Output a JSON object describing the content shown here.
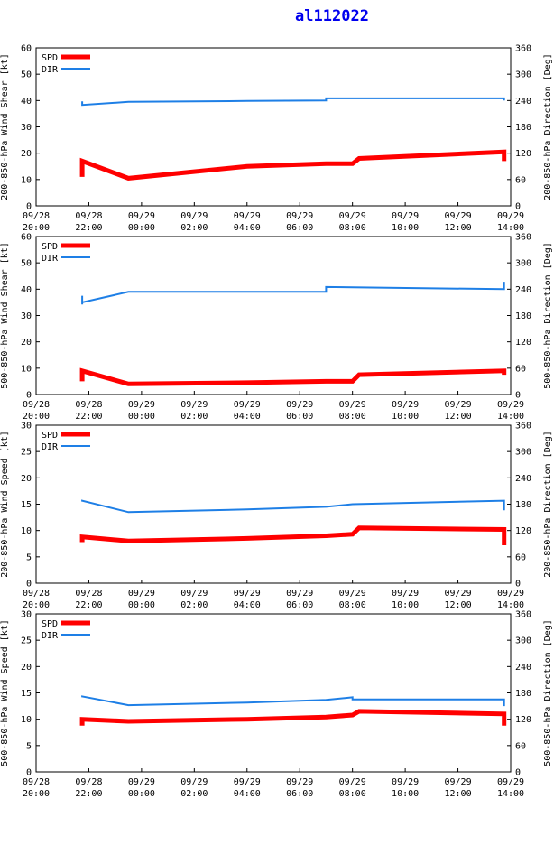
{
  "title": "al112022",
  "legend": {
    "spd_label": "SPD",
    "dir_label": "DIR"
  },
  "colors": {
    "spd": "#ff0000",
    "dir": "#1e7fe6",
    "title": "#0000ee"
  },
  "chart_data": [
    {
      "type": "line",
      "ylabel": "200-850-hPa Wind Shear [kt]",
      "y2label": "200-850-hPa Direction [Deg]",
      "ylim": [
        0,
        60
      ],
      "y_ticks": [
        0,
        10,
        20,
        30,
        40,
        50,
        60
      ],
      "y2lim": [
        0,
        360
      ],
      "y2_ticks": [
        0,
        60,
        120,
        180,
        240,
        300,
        360
      ],
      "x_ticks": [
        [
          "09/28",
          "20:00"
        ],
        [
          "09/28",
          "22:00"
        ],
        [
          "09/29",
          "00:00"
        ],
        [
          "09/29",
          "02:00"
        ],
        [
          "09/29",
          "04:00"
        ],
        [
          "09/29",
          "06:00"
        ],
        [
          "09/29",
          "08:00"
        ],
        [
          "09/29",
          "10:00"
        ],
        [
          "09/29",
          "12:00"
        ],
        [
          "09/29",
          "14:00"
        ]
      ],
      "legend_position": "top-left",
      "series": [
        {
          "name": "SPD",
          "axis": "left",
          "x": [
            21.75,
            21.75,
            23.5,
            28.0,
            31.0,
            32.0,
            32.25,
            37.75,
            37.75
          ],
          "values": [
            11,
            17,
            10.5,
            15,
            16,
            16,
            18,
            20.5,
            17
          ]
        },
        {
          "name": "DIR",
          "axis": "right",
          "x": [
            21.75,
            21.75,
            21.75,
            23.5,
            28.0,
            31.0,
            31.0,
            31.0,
            37.75,
            37.75
          ],
          "values": [
            233,
            238,
            230,
            237,
            239,
            240,
            243,
            245,
            245,
            240
          ]
        }
      ]
    },
    {
      "type": "line",
      "ylabel": "500-850-hPa Wind Shear [kt]",
      "y2label": "500-850-hPa Direction [Deg]",
      "ylim": [
        0,
        60
      ],
      "y_ticks": [
        0,
        10,
        20,
        30,
        40,
        50,
        60
      ],
      "y2lim": [
        0,
        360
      ],
      "y2_ticks": [
        0,
        60,
        120,
        180,
        240,
        300,
        360
      ],
      "x_ticks": [
        [
          "09/28",
          "20:00"
        ],
        [
          "09/28",
          "22:00"
        ],
        [
          "09/29",
          "00:00"
        ],
        [
          "09/29",
          "02:00"
        ],
        [
          "09/29",
          "04:00"
        ],
        [
          "09/29",
          "06:00"
        ],
        [
          "09/29",
          "08:00"
        ],
        [
          "09/29",
          "10:00"
        ],
        [
          "09/29",
          "12:00"
        ],
        [
          "09/29",
          "14:00"
        ]
      ],
      "legend_position": "top-left",
      "series": [
        {
          "name": "SPD",
          "axis": "left",
          "x": [
            21.75,
            21.75,
            23.5,
            28.0,
            31.0,
            32.0,
            32.25,
            37.75,
            37.75
          ],
          "values": [
            5,
            9,
            4,
            4.5,
            5,
            5,
            7.5,
            9,
            7.5
          ]
        },
        {
          "name": "DIR",
          "axis": "right",
          "x": [
            21.75,
            21.75,
            21.75,
            23.5,
            28.0,
            31.0,
            31.0,
            31.0,
            37.75,
            37.75
          ],
          "values": [
            225,
            205,
            210,
            234,
            234,
            234,
            245,
            245,
            240,
            257
          ]
        }
      ]
    },
    {
      "type": "line",
      "ylabel": "200-850-hPa Wind Speed [kt]",
      "y2label": "200-850-hPa Direction [Deg]",
      "ylim": [
        0,
        30
      ],
      "y_ticks": [
        0,
        5,
        10,
        15,
        20,
        25,
        30
      ],
      "y2lim": [
        0,
        360
      ],
      "y2_ticks": [
        0,
        60,
        120,
        180,
        240,
        300,
        360
      ],
      "x_ticks": [
        [
          "09/28",
          "20:00"
        ],
        [
          "09/28",
          "22:00"
        ],
        [
          "09/29",
          "00:00"
        ],
        [
          "09/29",
          "02:00"
        ],
        [
          "09/29",
          "04:00"
        ],
        [
          "09/29",
          "06:00"
        ],
        [
          "09/29",
          "08:00"
        ],
        [
          "09/29",
          "10:00"
        ],
        [
          "09/29",
          "12:00"
        ],
        [
          "09/29",
          "14:00"
        ]
      ],
      "legend_position": "top-left",
      "series": [
        {
          "name": "SPD",
          "axis": "left",
          "x": [
            21.75,
            21.75,
            23.5,
            28.0,
            31.0,
            32.0,
            32.25,
            37.75,
            37.75
          ],
          "values": [
            7.8,
            8.8,
            8.0,
            8.5,
            9.0,
            9.3,
            10.5,
            10.2,
            7.2
          ]
        },
        {
          "name": "DIR",
          "axis": "right",
          "x": [
            21.75,
            21.75,
            23.5,
            28.0,
            31.0,
            32.0,
            32.0,
            37.75,
            37.75
          ],
          "values": [
            186,
            188,
            162,
            168,
            174,
            180,
            180,
            188,
            166
          ]
        }
      ]
    },
    {
      "type": "line",
      "ylabel": "500-850-hPa Wind Speed [kt]",
      "y2label": "500-850-hPa Direction [Deg]",
      "ylim": [
        0,
        30
      ],
      "y_ticks": [
        0,
        5,
        10,
        15,
        20,
        25,
        30
      ],
      "y2lim": [
        0,
        360
      ],
      "y2_ticks": [
        0,
        60,
        120,
        180,
        240,
        300,
        360
      ],
      "x_ticks": [
        [
          "09/28",
          "20:00"
        ],
        [
          "09/28",
          "22:00"
        ],
        [
          "09/29",
          "00:00"
        ],
        [
          "09/29",
          "02:00"
        ],
        [
          "09/29",
          "04:00"
        ],
        [
          "09/29",
          "06:00"
        ],
        [
          "09/29",
          "08:00"
        ],
        [
          "09/29",
          "10:00"
        ],
        [
          "09/29",
          "12:00"
        ],
        [
          "09/29",
          "14:00"
        ]
      ],
      "legend_position": "top-left",
      "series": [
        {
          "name": "SPD",
          "axis": "left",
          "x": [
            21.75,
            21.75,
            23.5,
            28.0,
            31.0,
            32.0,
            32.25,
            37.75,
            37.75
          ],
          "values": [
            8.8,
            10.0,
            9.6,
            10.0,
            10.4,
            10.8,
            11.5,
            11.0,
            8.8
          ]
        },
        {
          "name": "DIR",
          "axis": "right",
          "x": [
            21.75,
            21.75,
            23.5,
            28.0,
            31.0,
            32.0,
            32.0,
            37.75,
            37.75
          ],
          "values": [
            170,
            172,
            152,
            158,
            164,
            170,
            165,
            165,
            150
          ]
        }
      ]
    }
  ]
}
